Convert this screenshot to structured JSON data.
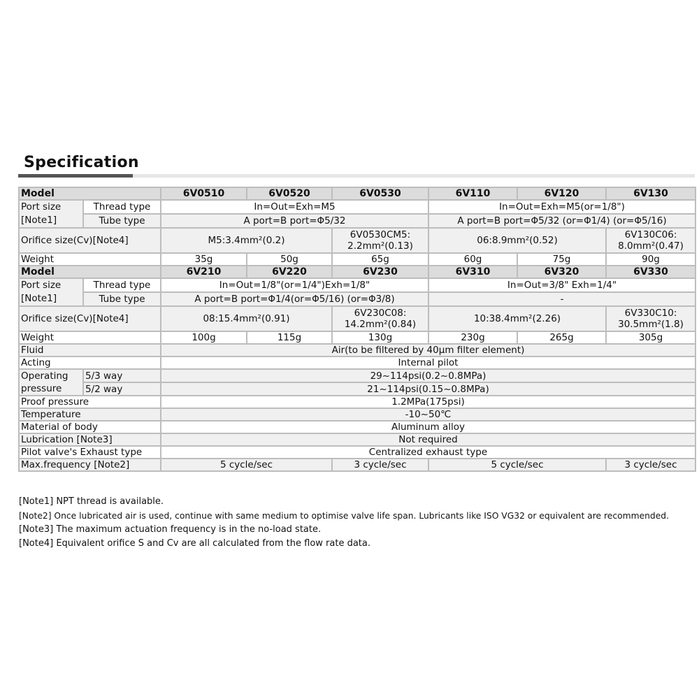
{
  "title": "Specification",
  "table": {
    "model_label": "Model",
    "port_size": "Port size\n[Note1]",
    "port_size_l1": "Port size",
    "port_size_l2": "[Note1]",
    "thread_type": "Thread type",
    "tube_type": "Tube type",
    "orifice": "Orifice size(Cv)[Note4]",
    "weight": "Weight",
    "group1": {
      "models": [
        "6V0510",
        "6V0520",
        "6V0530",
        "6V110",
        "6V120",
        "6V130"
      ],
      "thread": [
        "In=Out=Exh=M5",
        "In=Out=Exh=M5(or=1/8\")"
      ],
      "tube": [
        "A port=B port=Φ5/32",
        "A port=B port=Φ5/32 (or=Φ1/4) (or=Φ5/16)"
      ],
      "orifice": [
        "M5:3.4mm²(0.2)",
        "6V0530CM5:",
        "2.2mm²(0.13)",
        "06:8.9mm²(0.52)",
        "6V130C06:",
        "8.0mm²(0.47)"
      ],
      "weight": [
        "35g",
        "50g",
        "65g",
        "60g",
        "75g",
        "90g"
      ]
    },
    "group2": {
      "models": [
        "6V210",
        "6V220",
        "6V230",
        "6V310",
        "6V320",
        "6V330"
      ],
      "thread": [
        "In=Out=1/8\"(or=1/4\")Exh=1/8\"",
        "In=Out=3/8\" Exh=1/4\""
      ],
      "tube": [
        "A port=B port=Φ1/4(or=Φ5/16) (or=Φ3/8)",
        "-"
      ],
      "orifice": [
        "08:15.4mm²(0.91)",
        "6V230C08:",
        "14.2mm²(0.84)",
        "10:38.4mm²(2.26)",
        "6V330C10:",
        "30.5mm²(1.8)"
      ],
      "weight": [
        "100g",
        "115g",
        "130g",
        "230g",
        "265g",
        "305g"
      ]
    },
    "fluid": {
      "label": "Fluid",
      "value": "Air(to be filtered by 40μm filter element)"
    },
    "acting": {
      "label": "Acting",
      "value": "Internal pilot"
    },
    "operating": {
      "label1": "Operating",
      "label2": "pressure",
      "way53": "5/3 way",
      "way52": "5/2 way",
      "v53": "29~114psi(0.2~0.8MPa)",
      "v52": "21~114psi(0.15~0.8MPa)"
    },
    "proof": {
      "label": "Proof pressure",
      "value": "1.2MPa(175psi)"
    },
    "temperature": {
      "label": "Temperature",
      "value": "-10~50℃"
    },
    "material": {
      "label": "Material of body",
      "value": "Aluminum alloy"
    },
    "lubrication": {
      "label": "Lubrication [Note3]",
      "value": "Not required"
    },
    "pilot": {
      "label": "Pilot valve's Exhaust type",
      "value": "Centralized exhaust type"
    },
    "maxfreq": {
      "label": "Max.frequency [Note2]",
      "values": [
        "5 cycle/sec",
        "3 cycle/sec",
        "5 cycle/sec",
        "3 cycle/sec"
      ]
    }
  },
  "notes": [
    "[Note1]  NPT thread is available.",
    "[Note2]  Once lubricated air is used, continue with same medium to optimise valve life span. Lubricants like ISO VG32 or equivalent are recommended.",
    "[Note3]  The maximum actuation frequency is in the no-load state.",
    "[Note4] Equivalent orifice S and Cv are all calculated from the flow rate data."
  ]
}
